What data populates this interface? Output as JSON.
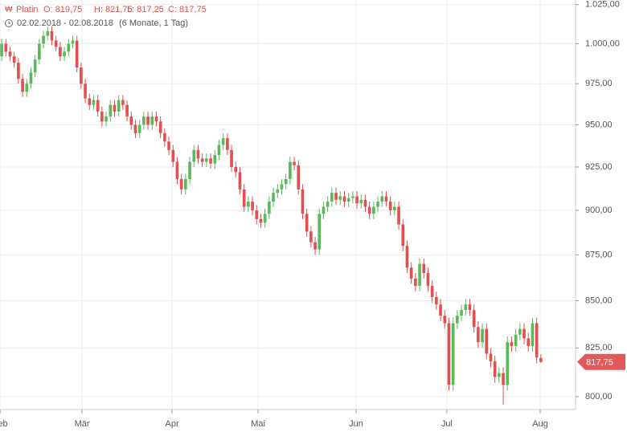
{
  "chart_data": {
    "type": "candlestick",
    "instrument": "Platin",
    "ohlc_labels": [
      "O: 819,75",
      "H: 821,75",
      "L: 817,25",
      "C: 817,75"
    ],
    "date_range": "02.02.2018 - 02.08.2018",
    "period": "(6 Monate, 1 Tag)",
    "price_tag": "817,75",
    "log_y": true,
    "grid": true,
    "up_color": "#5cb85c",
    "down_color": "#e05050",
    "ylim": [
      793.5,
      1028
    ],
    "yticks": [
      {
        "value": 800,
        "label": "800,00"
      },
      {
        "value": 825,
        "label": "825,00"
      },
      {
        "value": 850,
        "label": "850,00"
      },
      {
        "value": 875,
        "label": "875,00"
      },
      {
        "value": 900,
        "label": "900,00"
      },
      {
        "value": 925,
        "label": "925,00"
      },
      {
        "value": 950,
        "label": "950,00"
      },
      {
        "value": 975,
        "label": "975,00"
      },
      {
        "value": 1000,
        "label": "1.000,00"
      },
      {
        "value": 1025,
        "label": "1.025,00"
      }
    ],
    "xlim": [
      -0.4,
      137.3
    ],
    "xticks": [
      {
        "value": -0.38,
        "label": "Feb"
      },
      {
        "value": 19.23,
        "label": "Mär"
      },
      {
        "value": 40.77,
        "label": "Apr"
      },
      {
        "value": 61.35,
        "label": "Mai"
      },
      {
        "value": 84.8,
        "label": "Jun"
      },
      {
        "value": 106.5,
        "label": "Jul"
      },
      {
        "value": 128.85,
        "label": "Aug"
      }
    ],
    "open": [
      992,
      1000,
      995,
      992,
      988,
      978,
      970,
      975,
      982,
      990,
      1000,
      1005,
      1008,
      1002,
      998,
      992,
      995,
      1000,
      1002,
      985,
      975,
      966,
      962,
      965,
      958,
      952,
      955,
      962,
      958,
      965,
      962,
      955,
      950,
      945,
      950,
      955,
      950,
      955,
      952,
      945,
      940,
      935,
      928,
      918,
      912,
      918,
      928,
      935,
      930,
      928,
      930,
      927,
      932,
      938,
      942,
      935,
      925,
      922,
      912,
      902,
      905,
      900,
      895,
      893,
      898,
      905,
      910,
      912,
      915,
      918,
      928,
      926,
      912,
      898,
      888,
      882,
      878,
      898,
      902,
      905,
      910,
      906,
      908,
      905,
      907,
      908,
      904,
      906,
      902,
      898,
      902,
      905,
      908,
      905,
      900,
      902,
      892,
      880,
      868,
      862,
      858,
      870,
      865,
      858,
      852,
      848,
      842,
      838,
      806,
      838,
      842,
      845,
      848,
      845,
      836,
      828,
      835,
      822,
      818,
      810,
      812,
      806,
      828,
      826,
      832,
      835,
      830,
      826,
      838,
      819.75
    ],
    "high": [
      1003,
      1003,
      998,
      995,
      991,
      981,
      978,
      985,
      993,
      1003,
      1008,
      1011,
      1011,
      1005,
      1001,
      998,
      1003,
      1005,
      1005,
      988,
      978,
      969,
      968,
      968,
      961,
      958,
      965,
      965,
      968,
      968,
      965,
      958,
      953,
      953,
      958,
      958,
      958,
      958,
      955,
      948,
      943,
      938,
      931,
      921,
      921,
      931,
      938,
      938,
      933,
      933,
      933,
      935,
      941,
      945,
      945,
      938,
      928,
      925,
      915,
      908,
      908,
      903,
      898,
      901,
      908,
      913,
      915,
      918,
      921,
      931,
      931,
      929,
      915,
      901,
      891,
      885,
      901,
      905,
      908,
      913,
      913,
      911,
      911,
      910,
      911,
      911,
      909,
      909,
      905,
      905,
      908,
      911,
      911,
      908,
      905,
      905,
      895,
      883,
      871,
      865,
      873,
      873,
      868,
      861,
      855,
      851,
      845,
      841,
      841,
      845,
      848,
      851,
      851,
      848,
      839,
      838,
      838,
      825,
      821,
      815,
      815,
      831,
      831,
      835,
      838,
      838,
      833,
      841,
      841,
      821.75
    ],
    "low": [
      989,
      992,
      989,
      985,
      975,
      967,
      967,
      972,
      979,
      987,
      997,
      1002,
      999,
      995,
      989,
      989,
      992,
      997,
      982,
      972,
      963,
      959,
      959,
      955,
      949,
      949,
      952,
      955,
      955,
      959,
      952,
      947,
      942,
      942,
      947,
      947,
      947,
      949,
      942,
      937,
      932,
      925,
      915,
      909,
      909,
      915,
      925,
      927,
      925,
      925,
      924,
      924,
      929,
      935,
      932,
      922,
      919,
      909,
      899,
      899,
      897,
      892,
      890,
      890,
      895,
      902,
      907,
      909,
      912,
      915,
      923,
      909,
      895,
      885,
      879,
      875,
      875,
      895,
      899,
      902,
      903,
      903,
      902,
      902,
      904,
      901,
      901,
      899,
      895,
      895,
      899,
      902,
      902,
      897,
      897,
      889,
      877,
      865,
      859,
      855,
      855,
      862,
      855,
      849,
      845,
      839,
      835,
      803,
      803,
      835,
      839,
      842,
      842,
      833,
      825,
      825,
      819,
      815,
      807,
      807,
      796,
      803,
      823,
      823,
      829,
      827,
      823,
      823,
      817,
      817.25
    ],
    "close": [
      1000,
      995,
      992,
      988,
      978,
      970,
      975,
      982,
      990,
      1000,
      1005,
      1008,
      1002,
      998,
      992,
      995,
      1000,
      1002,
      985,
      975,
      966,
      962,
      965,
      958,
      952,
      955,
      962,
      958,
      965,
      962,
      955,
      950,
      945,
      950,
      955,
      950,
      955,
      952,
      945,
      940,
      935,
      928,
      918,
      912,
      918,
      928,
      935,
      930,
      928,
      930,
      927,
      932,
      938,
      942,
      935,
      925,
      922,
      912,
      902,
      905,
      900,
      895,
      893,
      898,
      905,
      910,
      912,
      915,
      918,
      928,
      926,
      912,
      898,
      888,
      882,
      878,
      898,
      902,
      905,
      910,
      906,
      908,
      905,
      907,
      908,
      904,
      906,
      902,
      898,
      902,
      905,
      908,
      905,
      900,
      902,
      892,
      880,
      868,
      862,
      858,
      870,
      865,
      858,
      852,
      848,
      842,
      838,
      806,
      838,
      842,
      845,
      848,
      845,
      836,
      828,
      835,
      822,
      818,
      810,
      812,
      806,
      828,
      826,
      832,
      835,
      830,
      826,
      838,
      820,
      817.75
    ]
  }
}
